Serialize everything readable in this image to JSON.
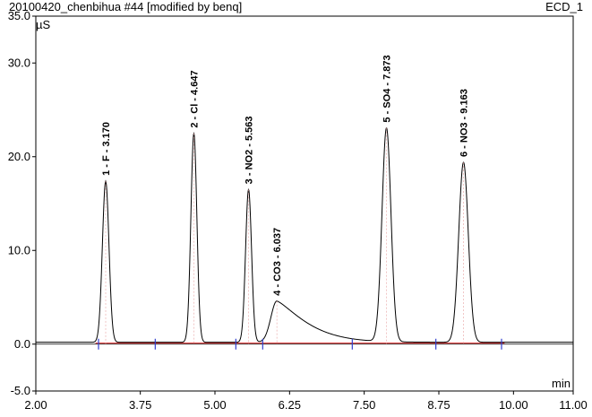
{
  "header": {
    "title": "20100420_chenbihua #44 [modified by benq]",
    "detector": "ECD_1"
  },
  "chart_data": {
    "type": "line",
    "title": "20100420_chenbihua #44 [modified by benq]",
    "channel": "ECD_1",
    "xlabel": "min",
    "ylabel": "µS",
    "xlim": [
      2.0,
      11.0
    ],
    "ylim": [
      -5.0,
      35.0
    ],
    "xticks": [
      "2.00",
      "3.75",
      "5.00",
      "6.25",
      "7.50",
      "8.75",
      "10.00",
      "11.00"
    ],
    "yticks": [
      "-5.0",
      "0.0",
      "10.0",
      "20.0",
      "30.0",
      "35.0"
    ],
    "peaks": [
      {
        "label": "1 - F - 3.170",
        "rt": 3.17,
        "height": 17.2,
        "sigma": 0.055,
        "tail": 0.0
      },
      {
        "label": "2 - Cl - 4.647",
        "rt": 4.647,
        "height": 22.3,
        "sigma": 0.05,
        "tail": 0.0
      },
      {
        "label": "3 - NO2 - 5.563",
        "rt": 5.563,
        "height": 16.3,
        "sigma": 0.05,
        "tail": 0.0
      },
      {
        "label": "4 - CO3 - 6.037",
        "rt": 6.037,
        "height": 4.4,
        "sigma": 0.1,
        "tail": 0.55
      },
      {
        "label": "5 - SO4 - 7.873",
        "rt": 7.873,
        "height": 22.8,
        "sigma": 0.075,
        "tail": 0.0
      },
      {
        "label": "6 - NO3 - 9.163",
        "rt": 9.163,
        "height": 19.2,
        "sigma": 0.08,
        "tail": 0.0
      }
    ],
    "integration_marks": [
      3.05,
      4.0,
      5.35,
      5.8,
      7.3,
      8.7,
      9.8
    ]
  }
}
